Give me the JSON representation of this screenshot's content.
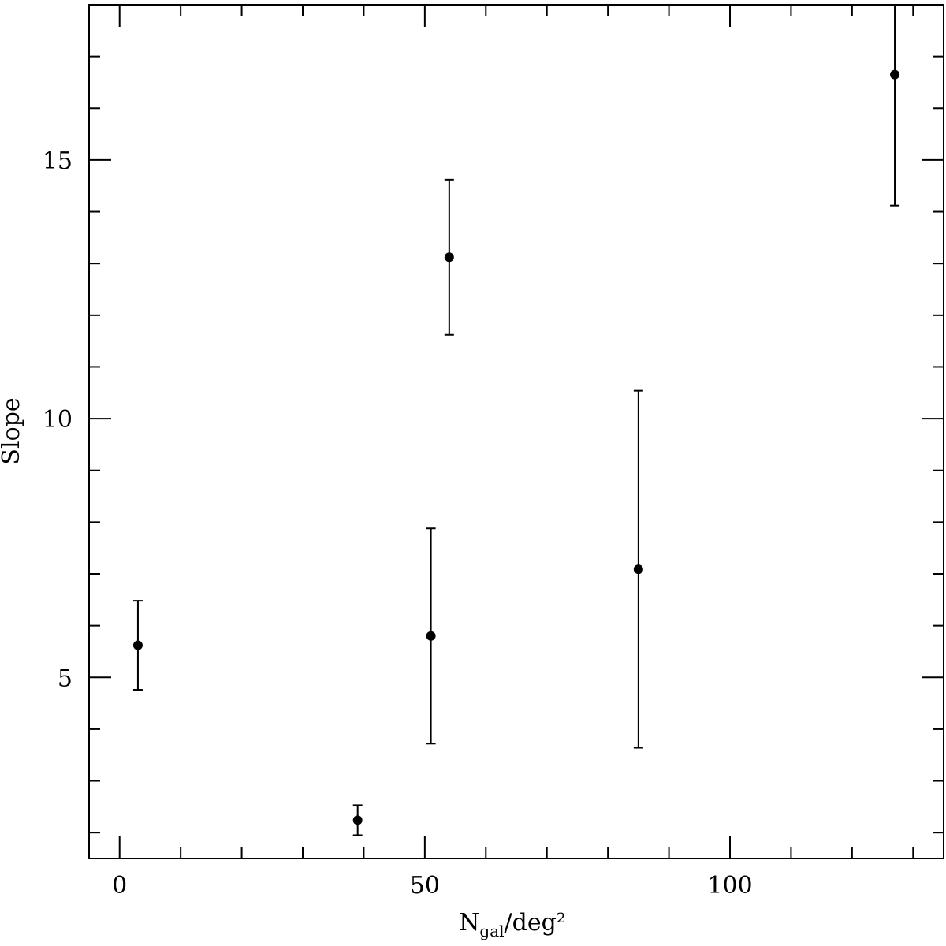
{
  "chart_data": {
    "type": "errorbar",
    "xlabel": {
      "main": "N",
      "sub": "gal",
      "rest": "/deg²"
    },
    "ylabel": "Slope",
    "x": [
      3,
      39,
      51,
      54,
      85,
      127
    ],
    "series": [
      {
        "color": "#000000",
        "values": [
          5.62,
          2.24,
          5.8,
          13.12,
          7.09,
          16.65
        ],
        "errors": [
          0.86,
          0.29,
          2.08,
          1.5,
          3.45,
          2.53
        ]
      }
    ],
    "xlim": [
      -5,
      135
    ],
    "ylim": [
      1.5,
      18
    ],
    "xticks": [
      0,
      50,
      100
    ],
    "yticks": [
      5,
      10,
      15
    ],
    "xminor_ticks": [
      10,
      20,
      30,
      40,
      60,
      70,
      80,
      90,
      110,
      120,
      130
    ],
    "yminor_ticks": [
      2,
      3,
      4,
      6,
      7,
      8,
      9,
      11,
      12,
      13,
      14,
      16,
      17
    ]
  }
}
